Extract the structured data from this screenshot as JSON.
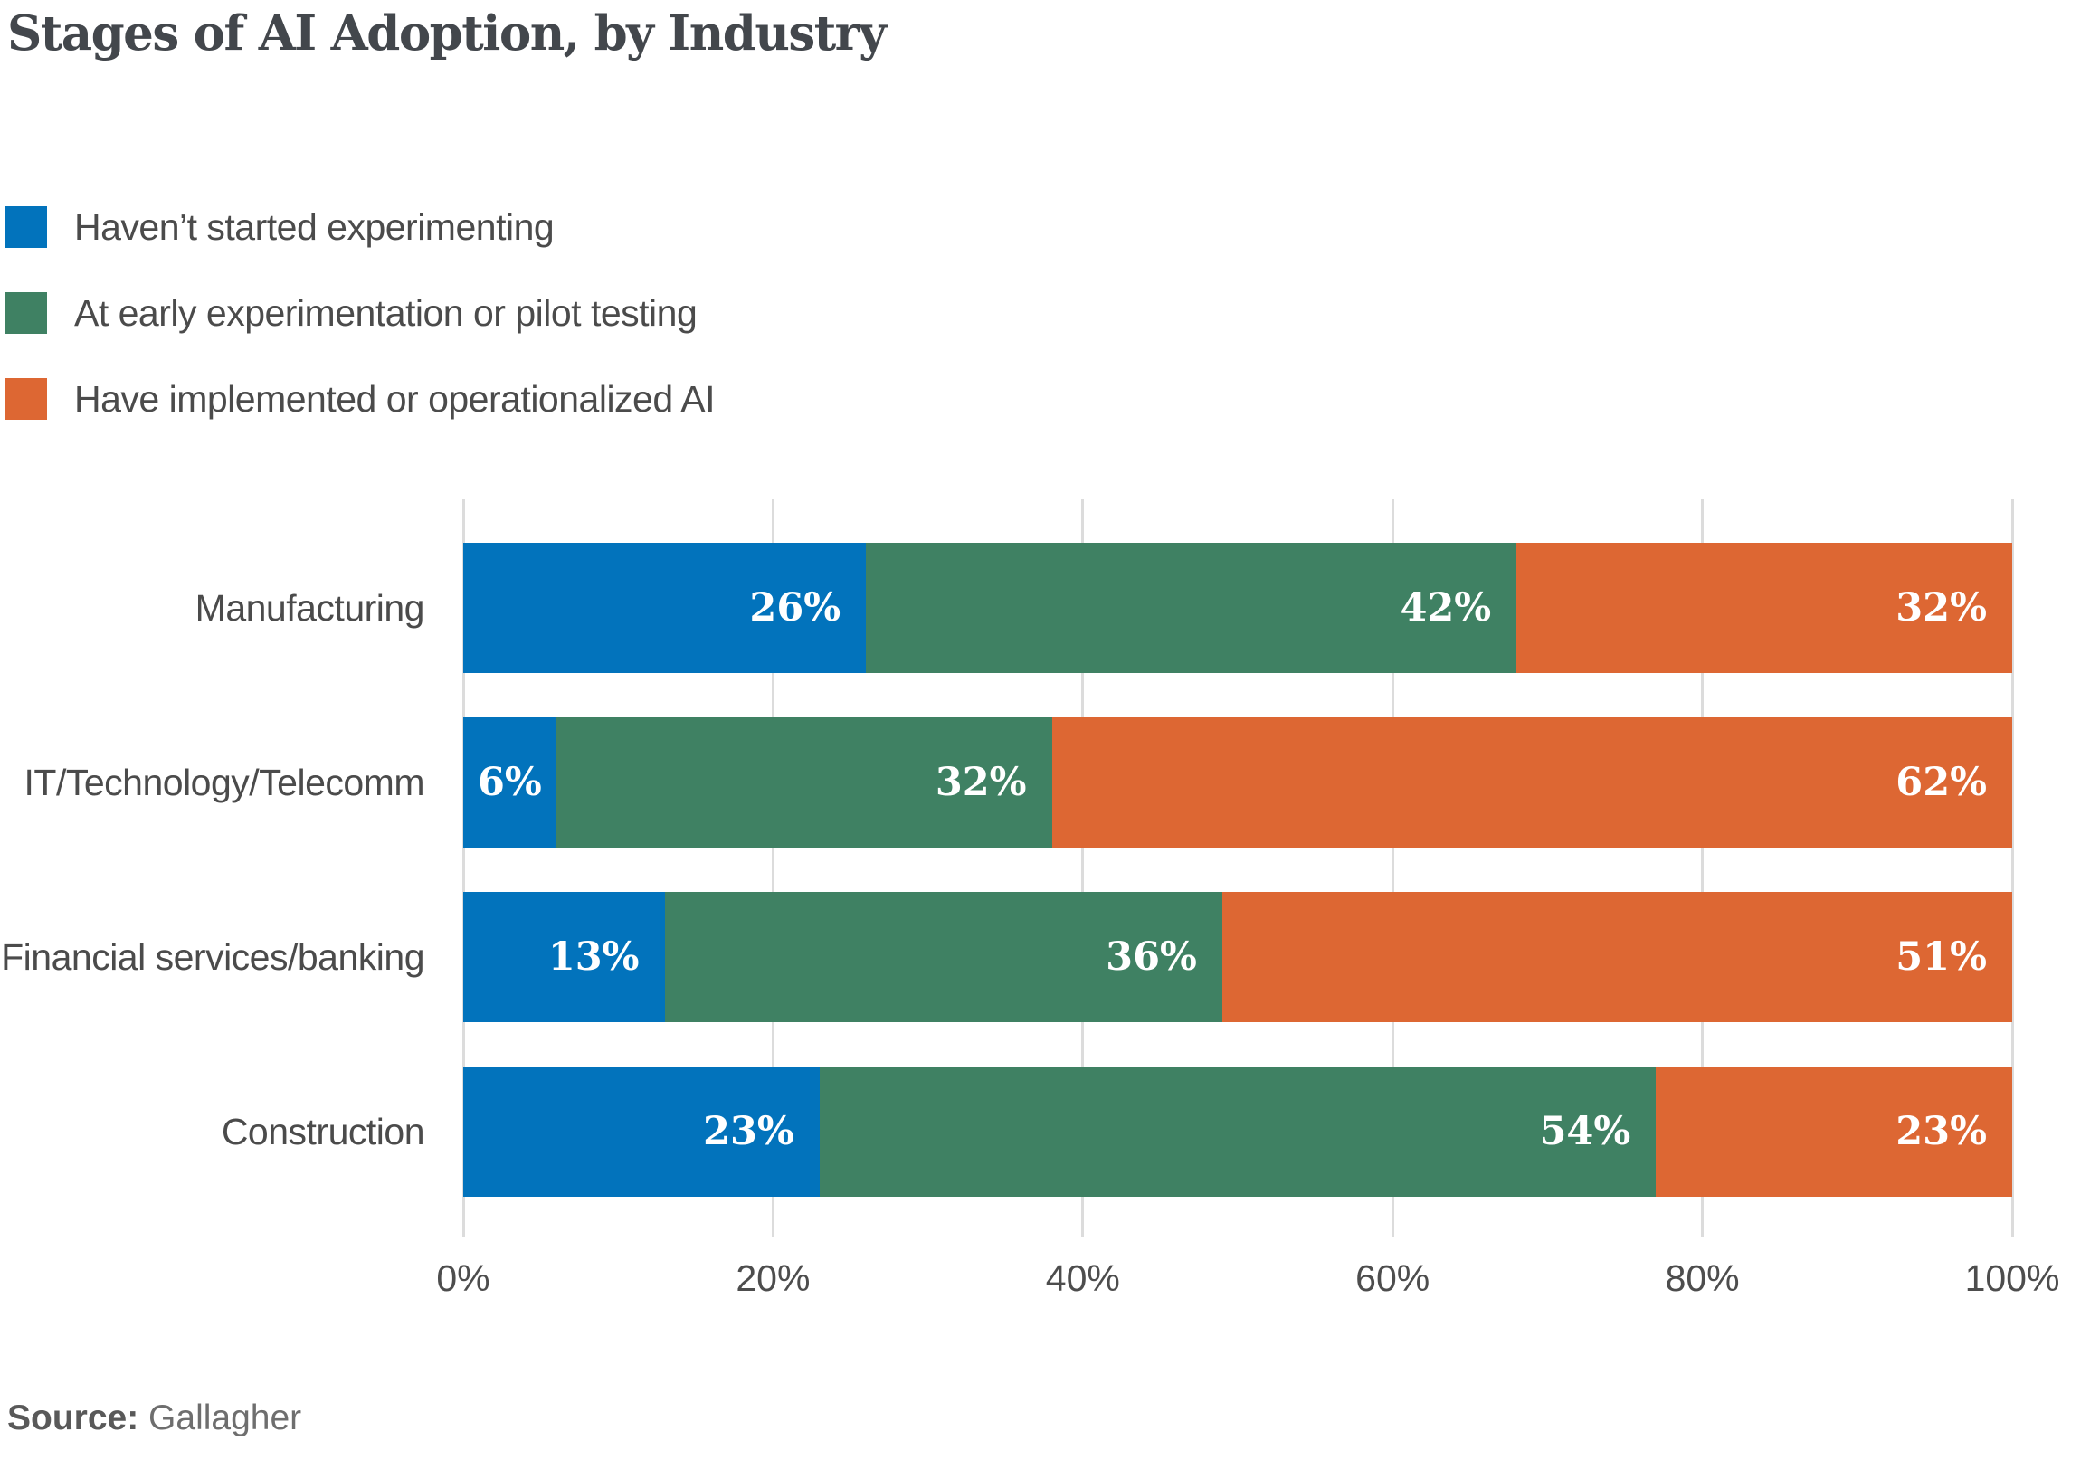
{
  "title": "Stages of AI Adoption, by Industry",
  "source": {
    "label": "Source:",
    "value": "Gallagher"
  },
  "palette": {
    "blue": "#0273BC",
    "green": "#3F8163",
    "orange": "#DD6733",
    "gridline": "#DCDCDC",
    "title_text": "#43474C",
    "label_text": "#4B4B4B",
    "axis_text": "#4D4D4D",
    "source_text": "#6E6E6E",
    "bar_value_text": "#FFFFFF"
  },
  "chart_data": {
    "type": "bar",
    "orientation": "horizontal",
    "stacked": true,
    "title": "Stages of AI Adoption, by Industry",
    "categories": [
      "Manufacturing",
      "IT/Technology/Telecomm",
      "Financial services/banking",
      "Construction"
    ],
    "series": [
      {
        "name": "Haven’t started experimenting",
        "color": "#0273BC",
        "values": [
          26,
          6,
          13,
          23
        ]
      },
      {
        "name": "At early experimentation or pilot testing",
        "color": "#3F8163",
        "values": [
          42,
          32,
          36,
          54
        ]
      },
      {
        "name": "Have implemented or operationalized AI",
        "color": "#DD6733",
        "values": [
          32,
          62,
          51,
          23
        ]
      }
    ],
    "xlabel": "",
    "ylabel": "",
    "xlim": [
      0,
      100
    ],
    "x_ticks": [
      "0%",
      "20%",
      "40%",
      "60%",
      "80%",
      "100%"
    ],
    "grid": "vertical",
    "legend_position": "top-left",
    "value_label_format": "{v}%"
  }
}
